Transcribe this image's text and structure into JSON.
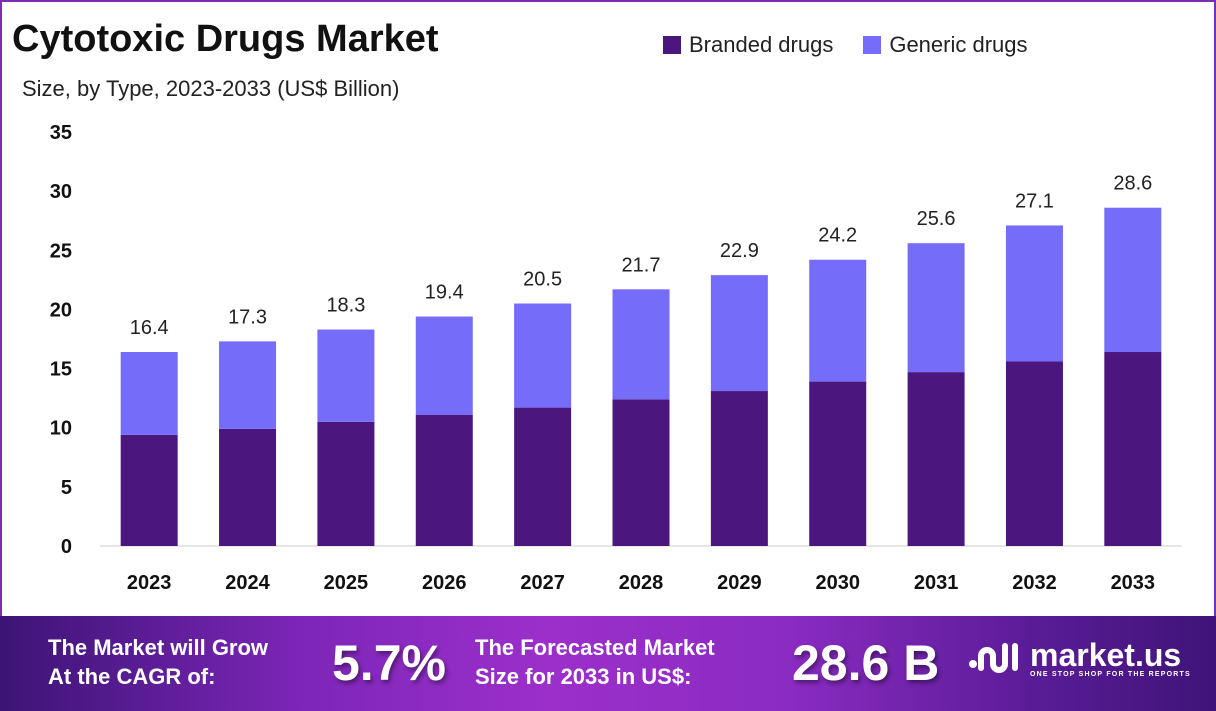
{
  "chart_data": {
    "type": "bar",
    "stacked": true,
    "title": "Cytotoxic Drugs Market",
    "subtitle": "Size, by Type, 2023-2033 (US$ Billion)",
    "categories": [
      "2023",
      "2024",
      "2025",
      "2026",
      "2027",
      "2028",
      "2029",
      "2030",
      "2031",
      "2032",
      "2033"
    ],
    "series": [
      {
        "name": "Branded drugs",
        "color": "#4c167f",
        "values": [
          9.4,
          9.9,
          10.5,
          11.1,
          11.7,
          12.4,
          13.1,
          13.9,
          14.7,
          15.6,
          16.4
        ]
      },
      {
        "name": "Generic drugs",
        "color": "#766cfa",
        "values": [
          7.0,
          7.4,
          7.8,
          8.3,
          8.8,
          9.3,
          9.8,
          10.3,
          10.9,
          11.5,
          12.2
        ]
      }
    ],
    "totals": [
      "16.4",
      "17.3",
      "18.3",
      "19.4",
      "20.5",
      "21.7",
      "22.9",
      "24.2",
      "25.6",
      "27.1",
      "28.6"
    ],
    "yticks": [
      "0",
      "5",
      "10",
      "15",
      "20",
      "25",
      "30",
      "35"
    ],
    "ylim": [
      0,
      35
    ],
    "grid": false,
    "legend": "top-right"
  },
  "footer": {
    "cagr_label_1": "The Market will Grow",
    "cagr_label_2": "At the CAGR of:",
    "cagr_value": "5.7%",
    "forecast_label_1": "The Forecasted Market",
    "forecast_label_2": "Size for 2033 in US$:",
    "forecast_value": "28.6 B",
    "logo_name": "market.us",
    "logo_tagline": "ONE STOP SHOP FOR THE REPORTS"
  }
}
